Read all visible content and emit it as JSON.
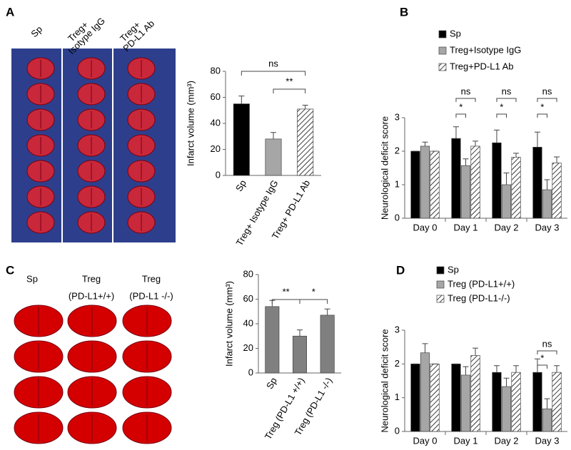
{
  "panels": [
    "A",
    "B",
    "C",
    "D"
  ],
  "images": {
    "A": [
      [
        "Sp"
      ],
      [
        "Treg+",
        "Isotype IgG"
      ],
      [
        "Treg+",
        "PD-L1 Ab"
      ]
    ],
    "C": [
      [
        "Sp"
      ],
      [
        "Treg",
        "(PD-L1+/+)"
      ],
      [
        "Treg",
        "(PD-L1 -/-)"
      ]
    ]
  },
  "chart_data": [
    {
      "type": "bar",
      "y_label": "Infarct volume (mm³)",
      "categories": [
        "Sp",
        "Treg+ Isotype IgG",
        "Treg+ PD-L1 Ab"
      ],
      "values": [
        55,
        28,
        51
      ],
      "errors": [
        6,
        5,
        3
      ],
      "colors": [
        "#000000",
        "#a6a6a6",
        "hatch"
      ],
      "ylim": [
        0,
        80
      ],
      "yticks": [
        0,
        20,
        40,
        60,
        80
      ],
      "annotations": [
        "ns",
        "**"
      ]
    },
    {
      "type": "grouped_bar",
      "y_label": "Neurological deficit score",
      "categories": [
        "Day 0",
        "Day 1",
        "Day 2",
        "Day 3"
      ],
      "series": [
        {
          "name": "Sp",
          "color": "#000000",
          "values": [
            2.0,
            2.38,
            2.25,
            2.12
          ],
          "errors": [
            0,
            0.35,
            0.38,
            0.45
          ]
        },
        {
          "name": "Treg+Isotype IgG",
          "color": "#a6a6a6",
          "values": [
            2.15,
            1.57,
            1.0,
            0.85
          ],
          "errors": [
            0.12,
            0.2,
            0.35,
            0.3
          ]
        },
        {
          "name": "Treg+PD-L1 Ab",
          "color": "hatch",
          "values": [
            2.0,
            2.15,
            1.82,
            1.65
          ],
          "errors": [
            0,
            0.15,
            0.12,
            0.18
          ]
        }
      ],
      "ylim": [
        0,
        3
      ],
      "yticks": [
        0,
        1,
        2,
        3
      ],
      "annotations": [
        "ns",
        "*",
        "ns",
        "*",
        "ns",
        "*"
      ]
    },
    {
      "type": "bar",
      "y_label": "Infarct volume (mm³)",
      "categories": [
        "Sp",
        "Treg (PD-L1 +/+)",
        "Treg (PD-L1 -/-)"
      ],
      "values": [
        54,
        30,
        47
      ],
      "errors": [
        5,
        5,
        5
      ],
      "colors": [
        "#808080",
        "#808080",
        "#808080"
      ],
      "ylim": [
        0,
        80
      ],
      "yticks": [
        0,
        20,
        40,
        60,
        80
      ],
      "annotations": [
        "**",
        "*"
      ]
    },
    {
      "type": "grouped_bar",
      "y_label": "Neurological deficit score",
      "categories": [
        "Day 0",
        "Day 1",
        "Day 2",
        "Day 3"
      ],
      "series": [
        {
          "name": "Sp",
          "color": "#000000",
          "values": [
            2.0,
            2.0,
            1.75,
            1.75
          ],
          "errors": [
            0,
            0,
            0.2,
            0.4
          ]
        },
        {
          "name": "Treg (PD-L1+/+)",
          "color": "#a6a6a6",
          "values": [
            2.33,
            1.67,
            1.33,
            0.67
          ],
          "errors": [
            0.27,
            0.25,
            0.25,
            0.3
          ]
        },
        {
          "name": "Treg (PD-L1-/-)",
          "color": "hatch",
          "values": [
            2.0,
            2.25,
            1.75,
            1.75
          ],
          "errors": [
            0,
            0.22,
            0.2,
            0.2
          ]
        }
      ],
      "ylim": [
        0,
        3
      ],
      "yticks": [
        0,
        1,
        2,
        3
      ],
      "annotations": [
        "ns",
        "*"
      ]
    }
  ]
}
